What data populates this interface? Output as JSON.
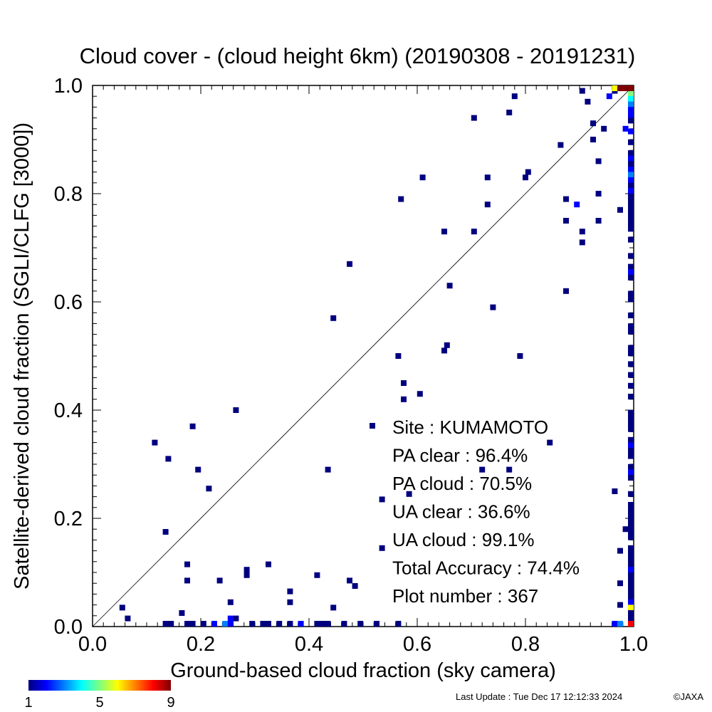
{
  "chart_data": {
    "type": "heatmap",
    "title": "Cloud cover - (cloud height 6km)  (20190308 - 20191231)",
    "xlabel": "Ground-based cloud fraction (sky camera)",
    "ylabel": "Satellite-derived cloud fraction (SGLI/CLFG [3000])",
    "xlim": [
      0,
      1
    ],
    "ylim": [
      0,
      1
    ],
    "xticks": [
      "0.0",
      "0.2",
      "0.4",
      "0.6",
      "0.8",
      "1.0"
    ],
    "yticks": [
      "0.0",
      "0.2",
      "0.4",
      "0.6",
      "0.8",
      "1.0"
    ],
    "reference_line": "y = x",
    "colorbar": {
      "min": 1,
      "max": 9,
      "ticks": [
        "1",
        "5",
        "9"
      ]
    },
    "points": [
      [
        0.055,
        0.035,
        1
      ],
      [
        0.065,
        0.015,
        1
      ],
      [
        0.115,
        0.34,
        1
      ],
      [
        0.135,
        0.175,
        1
      ],
      [
        0.14,
        0.31,
        1
      ],
      [
        0.165,
        0.025,
        1
      ],
      [
        0.175,
        0.115,
        1
      ],
      [
        0.175,
        0.085,
        1
      ],
      [
        0.185,
        0.37,
        1
      ],
      [
        0.195,
        0.29,
        1
      ],
      [
        0.215,
        0.255,
        1
      ],
      [
        0.235,
        0.085,
        1
      ],
      [
        0.255,
        0.045,
        1
      ],
      [
        0.265,
        0.4,
        1
      ],
      [
        0.285,
        0.105,
        1
      ],
      [
        0.285,
        0.095,
        1
      ],
      [
        0.325,
        0.115,
        1
      ],
      [
        0.365,
        0.065,
        1
      ],
      [
        0.365,
        0.045,
        1
      ],
      [
        0.415,
        0.095,
        1
      ],
      [
        0.435,
        0.29,
        1
      ],
      [
        0.445,
        0.035,
        1
      ],
      [
        0.445,
        0.57,
        1
      ],
      [
        0.475,
        0.67,
        1
      ],
      [
        0.475,
        0.085,
        1
      ],
      [
        0.485,
        0.075,
        1
      ],
      [
        0.535,
        0.235,
        1
      ],
      [
        0.535,
        0.145,
        1
      ],
      [
        0.565,
        0.5,
        1
      ],
      [
        0.57,
        0.79,
        1
      ],
      [
        0.575,
        0.45,
        1
      ],
      [
        0.575,
        0.42,
        1
      ],
      [
        0.585,
        0.245,
        1
      ],
      [
        0.605,
        0.43,
        1
      ],
      [
        0.61,
        0.83,
        1
      ],
      [
        0.65,
        0.73,
        1
      ],
      [
        0.65,
        0.51,
        1
      ],
      [
        0.655,
        0.52,
        1
      ],
      [
        0.66,
        0.63,
        1
      ],
      [
        0.705,
        0.94,
        1
      ],
      [
        0.705,
        0.73,
        1
      ],
      [
        0.72,
        0.29,
        1
      ],
      [
        0.73,
        0.83,
        1
      ],
      [
        0.73,
        0.78,
        1
      ],
      [
        0.74,
        0.59,
        1
      ],
      [
        0.77,
        0.95,
        1
      ],
      [
        0.77,
        0.29,
        1
      ],
      [
        0.78,
        0.98,
        1
      ],
      [
        0.79,
        0.5,
        1
      ],
      [
        0.8,
        0.83,
        1
      ],
      [
        0.805,
        0.84,
        1
      ],
      [
        0.845,
        0.34,
        1
      ],
      [
        0.865,
        0.89,
        1
      ],
      [
        0.875,
        0.79,
        1
      ],
      [
        0.875,
        0.75,
        1
      ],
      [
        0.875,
        0.62,
        1
      ],
      [
        0.895,
        0.78,
        2
      ],
      [
        0.905,
        0.99,
        1
      ],
      [
        0.905,
        0.73,
        1
      ],
      [
        0.905,
        0.71,
        1
      ],
      [
        0.915,
        0.97,
        1
      ],
      [
        0.925,
        0.93,
        1
      ],
      [
        0.925,
        0.9,
        1
      ],
      [
        0.935,
        0.86,
        1
      ],
      [
        0.935,
        0.8,
        1
      ],
      [
        0.935,
        0.75,
        1
      ],
      [
        0.945,
        0.92,
        1
      ],
      [
        0.965,
        0.25,
        1
      ],
      [
        0.975,
        0.77,
        1
      ],
      [
        0.975,
        0.08,
        1
      ],
      [
        0.975,
        0.04,
        1
      ],
      [
        0.955,
        0.98,
        2
      ],
      [
        0.965,
        0.99,
        1
      ],
      [
        0.985,
        0.92,
        2
      ],
      [
        0.975,
        0.14,
        1
      ],
      [
        0.985,
        0.18,
        1
      ],
      [
        0.965,
        0.005,
        2
      ],
      [
        0.975,
        0.005,
        3
      ],
      [
        0.135,
        0.005,
        1
      ],
      [
        0.145,
        0.005,
        1
      ],
      [
        0.175,
        0.005,
        1
      ],
      [
        0.185,
        0.005,
        1
      ],
      [
        0.205,
        0.005,
        1
      ],
      [
        0.225,
        0.005,
        2
      ],
      [
        0.245,
        0.005,
        3
      ],
      [
        0.255,
        0.005,
        2
      ],
      [
        0.255,
        0.015,
        2
      ],
      [
        0.265,
        0.015,
        1
      ],
      [
        0.295,
        0.005,
        1
      ],
      [
        0.325,
        0.005,
        1
      ],
      [
        0.315,
        0.005,
        1
      ],
      [
        0.345,
        0.005,
        1
      ],
      [
        0.365,
        0.005,
        1
      ],
      [
        0.385,
        0.005,
        2
      ],
      [
        0.415,
        0.005,
        1
      ],
      [
        0.425,
        0.005,
        1
      ],
      [
        0.435,
        0.005,
        1
      ],
      [
        0.465,
        0.005,
        1
      ],
      [
        0.495,
        0.005,
        1
      ],
      [
        0.525,
        0.005,
        1
      ],
      [
        0.565,
        0.005,
        1
      ]
    ],
    "right_column": [
      [
        0.995,
        6
      ],
      [
        0.985,
        5
      ],
      [
        0.975,
        4
      ],
      [
        0.965,
        3
      ],
      [
        0.955,
        2
      ],
      [
        0.945,
        2
      ],
      [
        0.935,
        1
      ],
      [
        0.915,
        2
      ],
      [
        0.895,
        1
      ],
      [
        0.875,
        1
      ],
      [
        0.865,
        2
      ],
      [
        0.855,
        1
      ],
      [
        0.845,
        2
      ],
      [
        0.835,
        3
      ],
      [
        0.825,
        2
      ],
      [
        0.815,
        1
      ],
      [
        0.805,
        2
      ],
      [
        0.795,
        1
      ],
      [
        0.785,
        1
      ],
      [
        0.775,
        1
      ],
      [
        0.765,
        1
      ],
      [
        0.755,
        1
      ],
      [
        0.745,
        1
      ],
      [
        0.735,
        1
      ],
      [
        0.715,
        1
      ],
      [
        0.685,
        1
      ],
      [
        0.665,
        1
      ],
      [
        0.655,
        2
      ],
      [
        0.645,
        1
      ],
      [
        0.615,
        1
      ],
      [
        0.605,
        1
      ],
      [
        0.575,
        1
      ],
      [
        0.555,
        1
      ],
      [
        0.545,
        1
      ],
      [
        0.515,
        1
      ],
      [
        0.505,
        1
      ],
      [
        0.485,
        1
      ],
      [
        0.465,
        1
      ],
      [
        0.445,
        1
      ],
      [
        0.425,
        1
      ],
      [
        0.395,
        1
      ],
      [
        0.385,
        1
      ],
      [
        0.375,
        1
      ],
      [
        0.365,
        1
      ],
      [
        0.345,
        1
      ],
      [
        0.335,
        2
      ],
      [
        0.325,
        1
      ],
      [
        0.315,
        1
      ],
      [
        0.295,
        1
      ],
      [
        0.285,
        2
      ],
      [
        0.275,
        1
      ],
      [
        0.245,
        1
      ],
      [
        0.225,
        1
      ],
      [
        0.215,
        1
      ],
      [
        0.205,
        1
      ],
      [
        0.195,
        1
      ],
      [
        0.185,
        1
      ],
      [
        0.175,
        1
      ],
      [
        0.165,
        1
      ],
      [
        0.145,
        1
      ],
      [
        0.135,
        1
      ],
      [
        0.125,
        1
      ],
      [
        0.115,
        1
      ],
      [
        0.105,
        2
      ],
      [
        0.095,
        1
      ],
      [
        0.085,
        1
      ],
      [
        0.075,
        1
      ],
      [
        0.065,
        1
      ],
      [
        0.055,
        1
      ],
      [
        0.045,
        2
      ],
      [
        0.035,
        6
      ],
      [
        0.025,
        1
      ],
      [
        0.015,
        1
      ],
      [
        0.005,
        8
      ]
    ],
    "top_row": [
      [
        0.965,
        6
      ],
      [
        0.975,
        9
      ],
      [
        0.985,
        9
      ],
      [
        0.995,
        9
      ]
    ],
    "legend": {
      "marker_color": "#00007f",
      "lines": [
        "Site : KUMAMOTO",
        "PA clear :  96.4%",
        "PA cloud :  70.5%",
        "UA clear :  36.6%",
        "UA cloud :  99.1%",
        "Total Accuracy :  74.4%",
        "Plot number :       367"
      ]
    }
  },
  "footer": {
    "last_update": "Last Update : Tue Dec 17 12:12:33 2024",
    "copyright": "©JAXA"
  }
}
